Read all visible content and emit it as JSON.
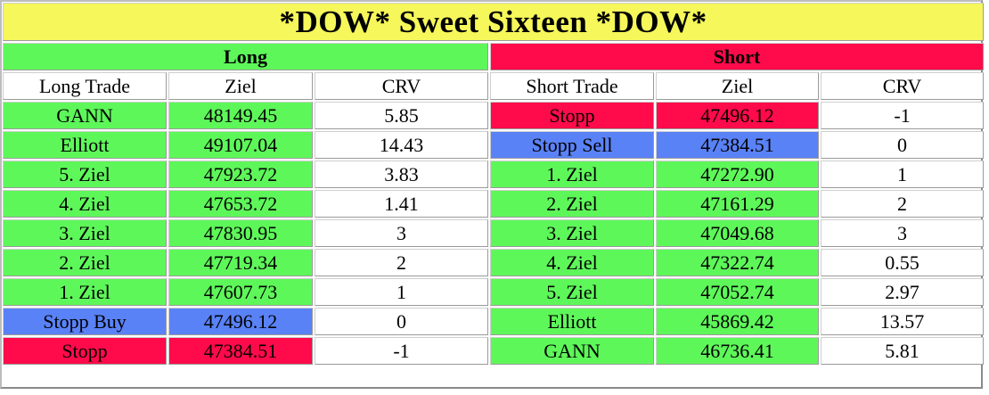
{
  "title": "*DOW* Sweet Sixteen *DOW*",
  "sections": {
    "long": "Long",
    "short": "Short"
  },
  "headers": {
    "long_trade": "Long Trade",
    "long_ziel": "Ziel",
    "long_crv": "CRV",
    "short_trade": "Short Trade",
    "short_ziel": "Ziel",
    "short_crv": "CRV"
  },
  "colors": {
    "title_bg": "#f5f75a",
    "green": "#5ef75a",
    "blue": "#5a82f7",
    "red": "#ff0a4a"
  },
  "rows": [
    {
      "long": {
        "label": "GANN",
        "ziel": "48149.45",
        "crv": "5.85",
        "color": "green"
      },
      "short": {
        "label": "Stopp",
        "ziel": "47496.12",
        "crv": "-1",
        "color": "red"
      }
    },
    {
      "long": {
        "label": "Elliott",
        "ziel": "49107.04",
        "crv": "14.43",
        "color": "green"
      },
      "short": {
        "label": "Stopp Sell",
        "ziel": "47384.51",
        "crv": "0",
        "color": "blue"
      }
    },
    {
      "long": {
        "label": "5. Ziel",
        "ziel": "47923.72",
        "crv": "3.83",
        "color": "green"
      },
      "short": {
        "label": "1. Ziel",
        "ziel": "47272.90",
        "crv": "1",
        "color": "green"
      }
    },
    {
      "long": {
        "label": "4. Ziel",
        "ziel": "47653.72",
        "crv": "1.41",
        "color": "green"
      },
      "short": {
        "label": "2. Ziel",
        "ziel": "47161.29",
        "crv": "2",
        "color": "green"
      }
    },
    {
      "long": {
        "label": "3. Ziel",
        "ziel": "47830.95",
        "crv": "3",
        "color": "green"
      },
      "short": {
        "label": "3. Ziel",
        "ziel": "47049.68",
        "crv": "3",
        "color": "green"
      }
    },
    {
      "long": {
        "label": "2. Ziel",
        "ziel": "47719.34",
        "crv": "2",
        "color": "green"
      },
      "short": {
        "label": "4. Ziel",
        "ziel": "47322.74",
        "crv": "0.55",
        "color": "green"
      }
    },
    {
      "long": {
        "label": "1. Ziel",
        "ziel": "47607.73",
        "crv": "1",
        "color": "green"
      },
      "short": {
        "label": "5. Ziel",
        "ziel": "47052.74",
        "crv": "2.97",
        "color": "green"
      }
    },
    {
      "long": {
        "label": "Stopp Buy",
        "ziel": "47496.12",
        "crv": "0",
        "color": "blue"
      },
      "short": {
        "label": "Elliott",
        "ziel": "45869.42",
        "crv": "13.57",
        "color": "green"
      }
    },
    {
      "long": {
        "label": "Stopp",
        "ziel": "47384.51",
        "crv": "-1",
        "color": "red"
      },
      "short": {
        "label": "GANN",
        "ziel": "46736.41",
        "crv": "5.81",
        "color": "green"
      }
    }
  ]
}
